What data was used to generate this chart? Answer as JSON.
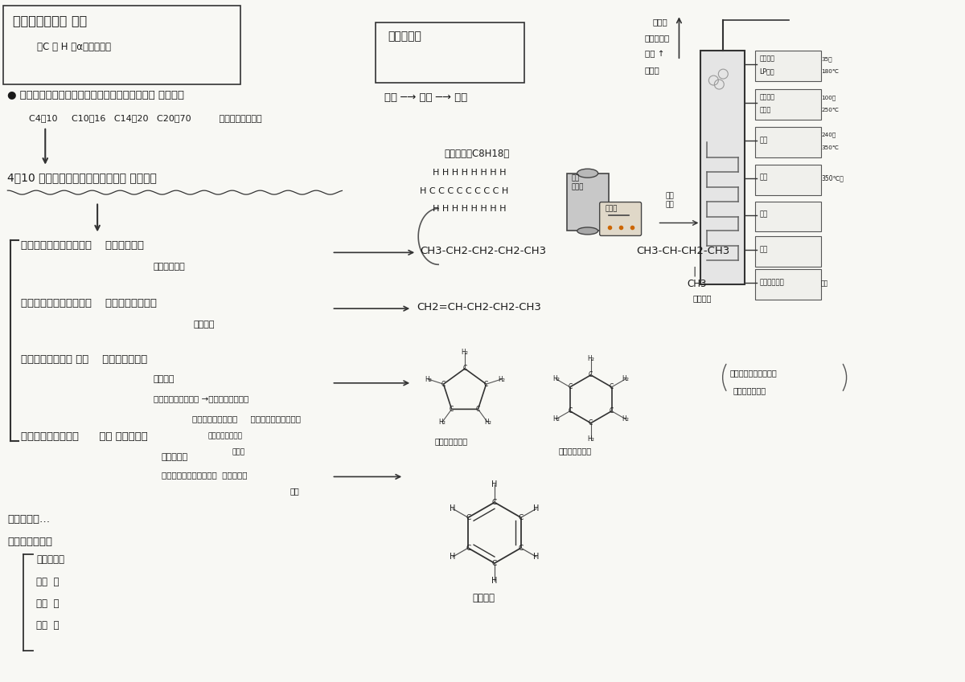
{
  "bg_color": "#f8f8f4",
  "text_color": "#1a1a1a",
  "title": "石油の炭化水素 成分",
  "subtitle": "（C と H とαの化合物）",
  "line1": "● ガソリン・灯油・軽油・重油・クレオソート油 は混合物",
  "line1b": "C4～10     C10～16   C14～20   C20～70          （化学式はない）",
  "line2": "4～10 程度の炭素数をもつ炭化水素 の混合物",
  "section_paraffin": "・パラフィン系炭化水素    鎖状（飽和）",
  "section_paraffin2": "単結合のこと",
  "section_olefin": "・オレフィン系炭化水素    鎖状（二重結合）",
  "section_olefin2": "を有する",
  "section_naphthene": "・ナフテン系炭化 水素    環状も含むもの",
  "section_naphthene2": "（飽和）",
  "section_naphthene3": "単結合のナフテン環 →｛シクロペンタン",
  "section_naphthene4": "（シクロアルカン）     ｛シクロヘキサンなど",
  "section_naphthene5": "シクロパラフィン",
  "section_naphthene6": "と呼ぶ",
  "section_aromatic": "・芳香族系炭化水素      環状 を含むもの",
  "section_aromatic2": "（不飽和）",
  "section_aromatic3": "二重結合のある芳香族環  ｛ベンゼン",
  "section_aromatic4": "など",
  "plus": "プラスして…",
  "non_hc": "非炭化水素成分",
  "non_hc1": "硫黄化合物",
  "non_hc2": "窒素  〃",
  "non_hc3": "酸素  〃",
  "non_hc4": "金属  〃",
  "crude_title": "原油の精製",
  "crude1": "原油 ─→ 蒸留 ─→ 分離",
  "octane": "オクタン（C8H18）",
  "octane_struct1": "H H H H H H H H",
  "octane_struct2": "H C C C C C C C C H",
  "octane_struct3": "H H H H H H H H",
  "distill1": "蒸気が",
  "distill2": "冷やされて",
  "distill3": "液体 ↑",
  "distill4": "になる",
  "tank_label": "原油\nタンク",
  "heater_label": "加熱炉",
  "tower_label": "蒸留装置",
  "steam_label": "石油\n蒸気",
  "products": [
    "石油ガス\nLPガス",
    "ガソリン\nナフサ",
    "灯油",
    "軽油",
    "重油",
    "残油",
    "アスファルト"
  ],
  "temps": [
    "35～\n180℃",
    "100～\n250℃",
    "240～\n350℃",
    "350℃～",
    "",
    "",
    "ガス"
  ],
  "paraffin_formula": "CH3-CH2-CH2-CH2-CH3",
  "isoparaffin_formula": "CH3-CH-CH2-CH3",
  "isoparaffin_branch": "CH3",
  "olefin_formula": "CH2=CH-CH2-CH2-CH3",
  "cyclopentane_label": "シクロペンタン",
  "cyclohexane_label": "シクロヘキサン",
  "cyclo_note1": "（シクロとは環のこと",
  "cyclo_note2": "サイクル由来）",
  "benzene_label": "ベンゼン"
}
